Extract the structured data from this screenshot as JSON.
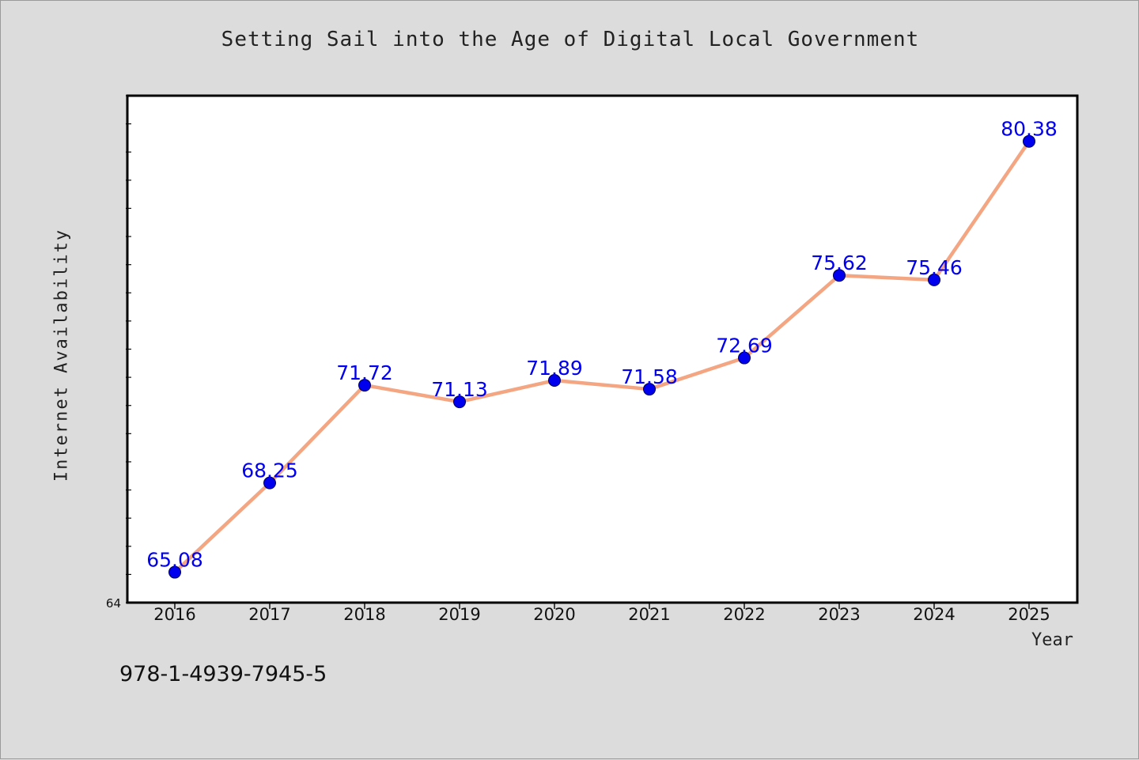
{
  "chart_data": {
    "type": "line",
    "title": "Setting Sail into the Age of Digital Local Government",
    "xlabel": "Year",
    "ylabel": "Internet Availability",
    "categories": [
      "2016",
      "2017",
      "2018",
      "2019",
      "2020",
      "2021",
      "2022",
      "2023",
      "2024",
      "2025"
    ],
    "series": [
      {
        "values": [
          65.08,
          68.25,
          71.72,
          71.13,
          71.89,
          71.58,
          72.69,
          75.62,
          75.46,
          80.38
        ],
        "data_labels": [
          "65.08",
          "68.25",
          "71.72",
          "71.13",
          "71.89",
          "71.58",
          "72.69",
          "75.62",
          "75.46",
          "80.38"
        ],
        "line_color": "#f4a582",
        "marker_color": "#0000ee"
      }
    ],
    "ylim": [
      64,
      82
    ],
    "y_tick_labels": [
      "64"
    ],
    "grid": false,
    "legend": "none"
  },
  "footnote": "978-1-4939-7945-5"
}
